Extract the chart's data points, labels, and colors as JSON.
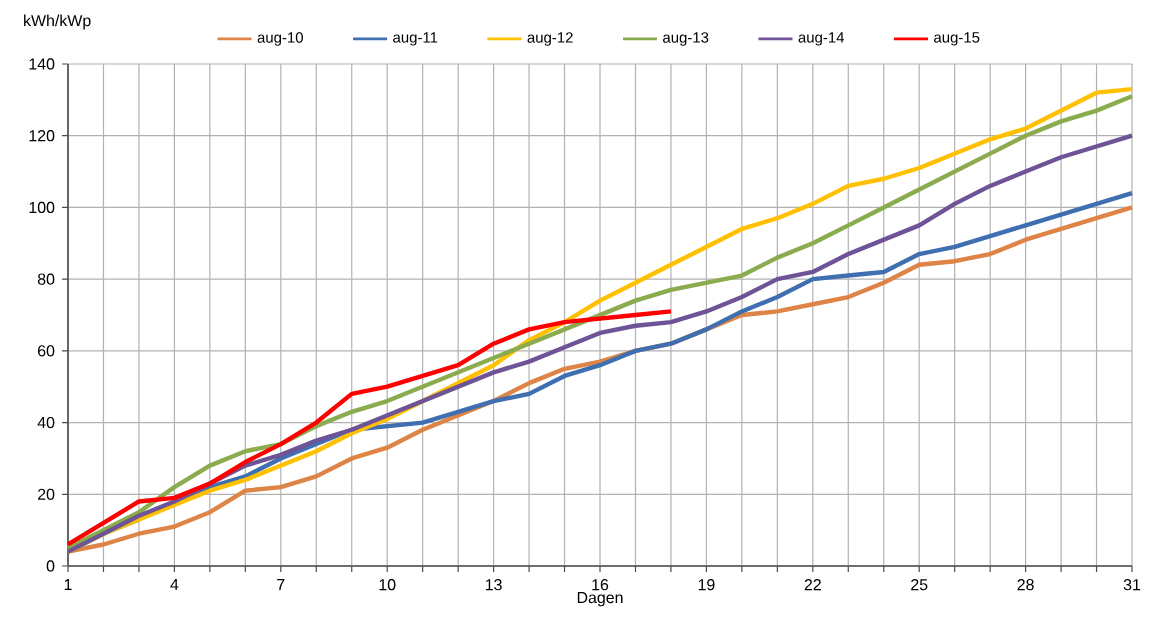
{
  "chart_data": {
    "type": "line",
    "ylabel": "kWh/kWp",
    "xlabel": "Dagen",
    "x": [
      1,
      2,
      3,
      4,
      5,
      6,
      7,
      8,
      9,
      10,
      11,
      12,
      13,
      14,
      15,
      16,
      17,
      18,
      19,
      20,
      21,
      22,
      23,
      24,
      25,
      26,
      27,
      28,
      29,
      30,
      31
    ],
    "series": [
      {
        "name": "aug-10",
        "color": "#dd8446",
        "values": [
          4,
          6,
          9,
          11,
          15,
          21,
          22,
          25,
          30,
          33,
          38,
          42,
          46,
          51,
          55,
          57,
          60,
          62,
          66,
          70,
          71,
          73,
          75,
          79,
          84,
          85,
          87,
          91,
          94,
          97,
          100
        ]
      },
      {
        "name": "aug-11",
        "color": "#3f6fb0",
        "values": [
          4,
          9,
          13,
          18,
          22,
          25,
          30,
          34,
          38,
          39,
          40,
          43,
          46,
          48,
          53,
          56,
          60,
          62,
          66,
          71,
          75,
          80,
          81,
          82,
          87,
          89,
          92,
          95,
          98,
          101,
          104
        ]
      },
      {
        "name": "aug-12",
        "color": "#ffc000",
        "values": [
          4,
          9,
          13,
          17,
          21,
          24,
          28,
          32,
          37,
          41,
          46,
          51,
          56,
          63,
          68,
          74,
          79,
          84,
          89,
          94,
          97,
          101,
          106,
          108,
          111,
          115,
          119,
          122,
          127,
          132,
          133
        ]
      },
      {
        "name": "aug-13",
        "color": "#8bab4f",
        "values": [
          5,
          10,
          15,
          22,
          28,
          32,
          34,
          39,
          43,
          46,
          50,
          54,
          58,
          62,
          66,
          70,
          74,
          77,
          79,
          81,
          86,
          90,
          95,
          100,
          105,
          110,
          115,
          120,
          124,
          127,
          131
        ]
      },
      {
        "name": "aug-14",
        "color": "#6e5496",
        "values": [
          4,
          9,
          14,
          18,
          23,
          28,
          31,
          35,
          38,
          42,
          46,
          50,
          54,
          57,
          61,
          65,
          67,
          68,
          71,
          75,
          80,
          82,
          87,
          91,
          95,
          101,
          106,
          110,
          114,
          117,
          120
        ]
      },
      {
        "name": "aug-15",
        "color": "#ff0000",
        "values": [
          6,
          12,
          18,
          19,
          23,
          29,
          34,
          40,
          48,
          50,
          53,
          56,
          62,
          66,
          68,
          69,
          70,
          71,
          null,
          null,
          null,
          null,
          null,
          null,
          null,
          null,
          null,
          null,
          null,
          null,
          null
        ]
      }
    ],
    "xlim": [
      1,
      31
    ],
    "xticks": [
      1,
      {
        "value": 2,
        "label": null
      },
      {
        "value": 3,
        "label": null
      },
      4,
      {
        "value": 5,
        "label": null
      },
      {
        "value": 6,
        "label": null
      },
      7,
      {
        "value": 8,
        "label": null
      },
      {
        "value": 9,
        "label": null
      },
      10,
      {
        "value": 11,
        "label": null
      },
      {
        "value": 12,
        "label": null
      },
      13,
      {
        "value": 14,
        "label": null
      },
      {
        "value": 15,
        "label": null
      },
      16,
      {
        "value": 17,
        "label": null
      },
      {
        "value": 18,
        "label": null
      },
      19,
      {
        "value": 20,
        "label": null
      },
      {
        "value": 21,
        "label": null
      },
      22,
      {
        "value": 23,
        "label": null
      },
      {
        "value": 24,
        "label": null
      },
      25,
      {
        "value": 26,
        "label": null
      },
      {
        "value": 27,
        "label": null
      },
      28,
      {
        "value": 29,
        "label": null
      },
      {
        "value": 30,
        "label": null
      },
      31
    ],
    "ylim": [
      0,
      140
    ],
    "yticks": [
      0,
      20,
      40,
      60,
      80,
      100,
      120,
      140
    ],
    "grid": true,
    "legend": "top",
    "line_style": "solid",
    "marker": "none"
  }
}
